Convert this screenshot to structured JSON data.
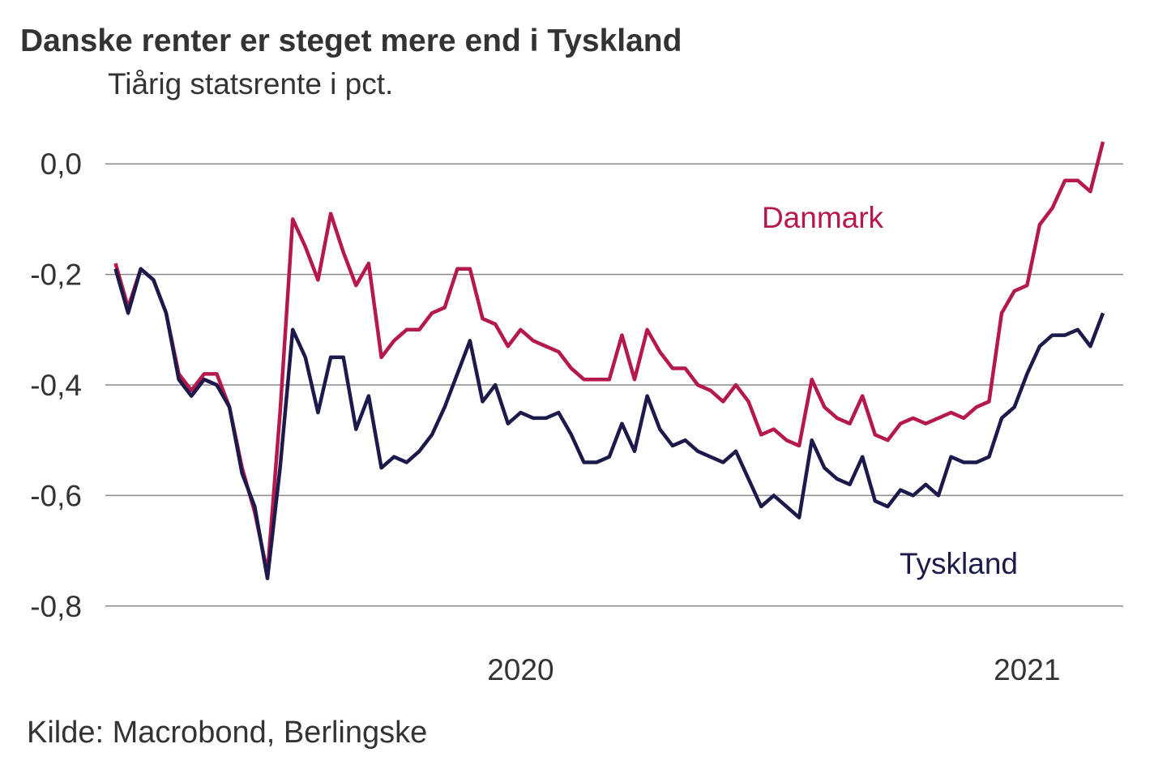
{
  "chart_data": {
    "type": "line",
    "title": "Danske renter er steget mere end i Tyskland",
    "subtitle": "Tiårig statsrente i pct.",
    "source": "Kilde: Macrobond, Berlingske",
    "x": [
      2019.2,
      2019.225,
      2019.25,
      2019.275,
      2019.3,
      2019.325,
      2019.35,
      2019.375,
      2019.4,
      2019.425,
      2019.45,
      2019.475,
      2019.5,
      2019.525,
      2019.55,
      2019.575,
      2019.6,
      2019.625,
      2019.65,
      2019.675,
      2019.7,
      2019.725,
      2019.75,
      2019.775,
      2019.8,
      2019.825,
      2019.85,
      2019.875,
      2019.9,
      2019.925,
      2019.95,
      2019.975,
      2020.0,
      2020.025,
      2020.05,
      2020.075,
      2020.1,
      2020.125,
      2020.15,
      2020.175,
      2020.2,
      2020.225,
      2020.25,
      2020.275,
      2020.3,
      2020.325,
      2020.35,
      2020.375,
      2020.4,
      2020.425,
      2020.45,
      2020.475,
      2020.5,
      2020.525,
      2020.55,
      2020.575,
      2020.6,
      2020.625,
      2020.65,
      2020.675,
      2020.7,
      2020.725,
      2020.75,
      2020.775,
      2020.8,
      2020.825,
      2020.85,
      2020.875,
      2020.9,
      2020.925,
      2020.95,
      2020.975,
      2021.0,
      2021.025,
      2021.05,
      2021.075,
      2021.1,
      2021.125,
      2021.15
    ],
    "series": [
      {
        "name": "Danmark",
        "color": "#b5184a",
        "values": [
          -0.18,
          -0.26,
          -0.19,
          -0.21,
          -0.27,
          -0.38,
          -0.41,
          -0.38,
          -0.38,
          -0.44,
          -0.55,
          -0.63,
          -0.74,
          -0.45,
          -0.1,
          -0.15,
          -0.21,
          -0.09,
          -0.16,
          -0.22,
          -0.18,
          -0.35,
          -0.32,
          -0.3,
          -0.3,
          -0.27,
          -0.26,
          -0.19,
          -0.19,
          -0.28,
          -0.29,
          -0.33,
          -0.3,
          -0.32,
          -0.33,
          -0.34,
          -0.37,
          -0.39,
          -0.39,
          -0.39,
          -0.31,
          -0.39,
          -0.3,
          -0.34,
          -0.37,
          -0.37,
          -0.4,
          -0.41,
          -0.43,
          -0.4,
          -0.43,
          -0.49,
          -0.48,
          -0.5,
          -0.51,
          -0.39,
          -0.44,
          -0.46,
          -0.47,
          -0.42,
          -0.49,
          -0.5,
          -0.47,
          -0.46,
          -0.47,
          -0.46,
          -0.45,
          -0.46,
          -0.44,
          -0.43,
          -0.27,
          -0.23,
          -0.22,
          -0.11,
          -0.08,
          -0.03,
          -0.03,
          -0.05,
          0.04
        ]
      },
      {
        "name": "Tyskland",
        "color": "#1c1a4a",
        "values": [
          -0.19,
          -0.27,
          -0.19,
          -0.21,
          -0.27,
          -0.39,
          -0.42,
          -0.39,
          -0.4,
          -0.44,
          -0.56,
          -0.62,
          -0.75,
          -0.55,
          -0.3,
          -0.35,
          -0.45,
          -0.35,
          -0.35,
          -0.48,
          -0.42,
          -0.55,
          -0.53,
          -0.54,
          -0.52,
          -0.49,
          -0.44,
          -0.38,
          -0.32,
          -0.43,
          -0.4,
          -0.47,
          -0.45,
          -0.46,
          -0.46,
          -0.45,
          -0.49,
          -0.54,
          -0.54,
          -0.53,
          -0.47,
          -0.52,
          -0.42,
          -0.48,
          -0.51,
          -0.5,
          -0.52,
          -0.53,
          -0.54,
          -0.52,
          -0.57,
          -0.62,
          -0.6,
          -0.62,
          -0.64,
          -0.5,
          -0.55,
          -0.57,
          -0.58,
          -0.53,
          -0.61,
          -0.62,
          -0.59,
          -0.6,
          -0.58,
          -0.6,
          -0.53,
          -0.54,
          -0.54,
          -0.53,
          -0.46,
          -0.44,
          -0.38,
          -0.33,
          -0.31,
          -0.31,
          -0.3,
          -0.33,
          -0.27
        ]
      }
    ],
    "xlim": [
      2019.18,
      2021.19
    ],
    "xticks": [
      2020,
      2021
    ],
    "ylim": [
      -0.9,
      0.1
    ],
    "yticks": [
      {
        "value": 0,
        "label": "0,0"
      },
      {
        "value": -0.2,
        "label": "-0,2"
      },
      {
        "value": -0.4,
        "label": "-0,4"
      },
      {
        "value": -0.6,
        "label": "-0,6"
      },
      {
        "value": -0.8,
        "label": "-0,8"
      }
    ],
    "grid": true
  }
}
